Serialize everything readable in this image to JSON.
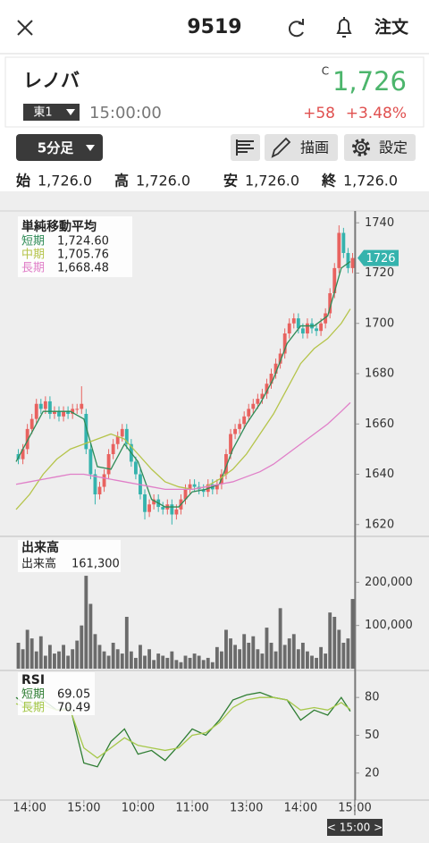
{
  "header": {
    "code": "9519",
    "order": "注文"
  },
  "stock": {
    "name": "レノバ",
    "price_flag": "C",
    "price": "1,726",
    "market": "東1",
    "time": "15:00:00",
    "change": "+58",
    "change_pct": "+3.48%"
  },
  "toolbar": {
    "interval": "5分足",
    "draw": "描画",
    "settings": "設定"
  },
  "ohlc": [
    {
      "label": "始",
      "value": "1,726.0"
    },
    {
      "label": "高",
      "value": "1,726.0"
    },
    {
      "label": "安",
      "value": "1,726.0"
    },
    {
      "label": "終",
      "value": "1,726.0"
    }
  ],
  "chart_data": [
    {
      "type": "candlestick",
      "title": "単純移動平均",
      "up_color": "#e8625f",
      "down_color": "#35b3ad",
      "xlim": [
        0,
        75
      ],
      "ylim": [
        1616,
        1744
      ],
      "yticks": [
        1620,
        1640,
        1660,
        1680,
        1700,
        1720,
        1740
      ],
      "current_price": 1726,
      "open": [
        1648,
        1646,
        1650,
        1658,
        1662,
        1668,
        1666,
        1669,
        1664,
        1665,
        1663,
        1665,
        1664,
        1666,
        1666,
        1664,
        1650,
        1640,
        1632,
        1635,
        1640,
        1648,
        1652,
        1655,
        1658,
        1652,
        1645,
        1640,
        1632,
        1625,
        1628,
        1630,
        1627,
        1626,
        1628,
        1624,
        1626,
        1630,
        1634,
        1636,
        1635,
        1634,
        1633,
        1636,
        1634,
        1636,
        1640,
        1648,
        1656,
        1658,
        1660,
        1663,
        1666,
        1668,
        1670,
        1672,
        1676,
        1680,
        1684,
        1688,
        1696,
        1700,
        1702,
        1698,
        1696,
        1700,
        1698,
        1697,
        1700,
        1704,
        1712,
        1722,
        1736,
        1728,
        1722
      ],
      "high": [
        1650,
        1652,
        1660,
        1664,
        1670,
        1670,
        1671,
        1671,
        1667,
        1667,
        1667,
        1667,
        1668,
        1668,
        1675,
        1666,
        1652,
        1642,
        1637,
        1642,
        1650,
        1654,
        1657,
        1660,
        1660,
        1654,
        1647,
        1642,
        1634,
        1630,
        1632,
        1632,
        1629,
        1630,
        1630,
        1628,
        1632,
        1636,
        1638,
        1638,
        1637,
        1636,
        1638,
        1638,
        1638,
        1642,
        1650,
        1658,
        1660,
        1662,
        1665,
        1668,
        1670,
        1672,
        1674,
        1678,
        1682,
        1686,
        1690,
        1698,
        1702,
        1704,
        1704,
        1700,
        1702,
        1702,
        1700,
        1702,
        1706,
        1714,
        1724,
        1739,
        1738,
        1730,
        1728
      ],
      "low": [
        1644,
        1644,
        1648,
        1656,
        1660,
        1664,
        1664,
        1662,
        1662,
        1661,
        1661,
        1662,
        1662,
        1664,
        1664,
        1648,
        1638,
        1628,
        1630,
        1633,
        1638,
        1646,
        1650,
        1653,
        1650,
        1643,
        1638,
        1630,
        1622,
        1623,
        1626,
        1625,
        1624,
        1624,
        1620,
        1622,
        1624,
        1628,
        1632,
        1633,
        1632,
        1631,
        1631,
        1632,
        1632,
        1634,
        1638,
        1646,
        1654,
        1656,
        1658,
        1661,
        1664,
        1666,
        1668,
        1670,
        1674,
        1678,
        1682,
        1686,
        1694,
        1698,
        1696,
        1694,
        1694,
        1696,
        1695,
        1695,
        1698,
        1702,
        1710,
        1720,
        1726,
        1720,
        1720
      ],
      "close": [
        1646,
        1650,
        1658,
        1662,
        1668,
        1666,
        1669,
        1664,
        1665,
        1663,
        1665,
        1664,
        1666,
        1666,
        1668,
        1650,
        1640,
        1632,
        1635,
        1640,
        1648,
        1652,
        1655,
        1658,
        1652,
        1645,
        1640,
        1632,
        1625,
        1628,
        1630,
        1627,
        1626,
        1628,
        1624,
        1626,
        1630,
        1634,
        1636,
        1635,
        1634,
        1633,
        1636,
        1634,
        1636,
        1640,
        1648,
        1656,
        1658,
        1660,
        1663,
        1666,
        1668,
        1670,
        1672,
        1676,
        1680,
        1684,
        1688,
        1696,
        1700,
        1702,
        1698,
        1696,
        1700,
        1698,
        1697,
        1700,
        1704,
        1712,
        1722,
        1736,
        1728,
        1722,
        1726
      ],
      "series": [
        {
          "name": "短期",
          "color": "#2e8b57",
          "last_label": "1,724.60",
          "x": [
            0,
            3,
            6,
            9,
            12,
            15,
            18,
            21,
            24,
            27,
            30,
            33,
            36,
            39,
            42,
            45,
            48,
            51,
            54,
            57,
            60,
            63,
            66,
            69,
            72,
            74
          ],
          "values": [
            1645,
            1655,
            1665,
            1665,
            1665,
            1662,
            1643,
            1642,
            1652,
            1645,
            1630,
            1627,
            1627,
            1633,
            1634,
            1636,
            1650,
            1660,
            1668,
            1678,
            1692,
            1699,
            1699,
            1703,
            1722,
            1724.6
          ]
        },
        {
          "name": "中期",
          "color": "#b5c44a",
          "last_label": "1,705.76",
          "x": [
            0,
            3,
            6,
            9,
            12,
            15,
            18,
            21,
            24,
            27,
            30,
            33,
            36,
            39,
            42,
            45,
            48,
            51,
            54,
            57,
            60,
            63,
            66,
            69,
            72,
            74
          ],
          "values": [
            1626,
            1632,
            1640,
            1646,
            1650,
            1652,
            1654,
            1656,
            1654,
            1648,
            1642,
            1637,
            1635,
            1634,
            1635,
            1638,
            1642,
            1648,
            1656,
            1664,
            1674,
            1684,
            1690,
            1694,
            1700,
            1705.76
          ]
        },
        {
          "name": "長期",
          "color": "#e07fc8",
          "last_label": "1,668.48",
          "x": [
            0,
            3,
            6,
            9,
            12,
            15,
            18,
            21,
            24,
            27,
            30,
            33,
            36,
            39,
            42,
            45,
            48,
            51,
            54,
            57,
            60,
            63,
            66,
            69,
            72,
            74
          ],
          "values": [
            1636,
            1637,
            1638,
            1639,
            1640,
            1640,
            1639,
            1638,
            1637,
            1636,
            1635,
            1634,
            1634,
            1634,
            1635,
            1636,
            1637,
            1639,
            1641,
            1644,
            1648,
            1652,
            1656,
            1660,
            1665,
            1668.48
          ]
        }
      ]
    },
    {
      "type": "bar",
      "title": "出来高",
      "name": "出来高",
      "last_label": "161,300",
      "color": "#6b6b6b",
      "xlim": [
        0,
        75
      ],
      "ylim": [
        0,
        300000
      ],
      "yticks": [
        {
          "value": 100000,
          "label": "100,000"
        },
        {
          "value": 200000,
          "label": "200,000"
        }
      ],
      "values": [
        60000,
        45000,
        90000,
        70000,
        40000,
        75000,
        30000,
        55000,
        35000,
        40000,
        55000,
        30000,
        45000,
        65000,
        100000,
        215000,
        150000,
        80000,
        55000,
        40000,
        30000,
        60000,
        45000,
        35000,
        120000,
        40000,
        25000,
        55000,
        30000,
        45000,
        20000,
        35000,
        30000,
        25000,
        40000,
        20000,
        15000,
        30000,
        25000,
        35000,
        30000,
        20000,
        25000,
        15000,
        50000,
        40000,
        90000,
        70000,
        55000,
        45000,
        80000,
        60000,
        75000,
        45000,
        35000,
        95000,
        60000,
        40000,
        140000,
        55000,
        70000,
        80000,
        45000,
        60000,
        40000,
        30000,
        25000,
        50000,
        35000,
        130000,
        120000,
        90000,
        60000,
        70000,
        161300
      ]
    },
    {
      "type": "line",
      "title": "RSI",
      "xlim": [
        0,
        75
      ],
      "ylim": [
        0,
        100
      ],
      "yticks": [
        20,
        50,
        80
      ],
      "xticks": [
        {
          "value": 3,
          "label": "14:00"
        },
        {
          "value": 15,
          "label": "15:00"
        },
        {
          "value": 27,
          "label": "10:00"
        },
        {
          "value": 39,
          "label": "11:00"
        },
        {
          "value": 51,
          "label": "13:00"
        },
        {
          "value": 63,
          "label": "14:00"
        },
        {
          "value": 75,
          "label": "15:00"
        }
      ],
      "crosshair_label": "< 15:00 >",
      "series": [
        {
          "name": "短期",
          "color": "#2e7d32",
          "last_label": "69.05",
          "x": [
            0,
            3,
            6,
            9,
            12,
            15,
            18,
            21,
            24,
            27,
            30,
            33,
            36,
            39,
            42,
            45,
            48,
            51,
            54,
            57,
            60,
            63,
            66,
            69,
            72,
            74
          ],
          "values": [
            80,
            72,
            78,
            70,
            72,
            28,
            25,
            45,
            55,
            35,
            38,
            30,
            42,
            55,
            50,
            62,
            78,
            82,
            84,
            80,
            78,
            62,
            70,
            66,
            80,
            69.05
          ]
        },
        {
          "name": "長期",
          "color": "#a6c84a",
          "last_label": "70.49",
          "x": [
            0,
            3,
            6,
            9,
            12,
            15,
            18,
            21,
            24,
            27,
            30,
            33,
            36,
            39,
            42,
            45,
            48,
            51,
            54,
            57,
            60,
            63,
            66,
            69,
            72,
            74
          ],
          "values": [
            75,
            72,
            74,
            70,
            70,
            40,
            32,
            40,
            48,
            42,
            40,
            38,
            40,
            50,
            52,
            60,
            72,
            78,
            80,
            80,
            78,
            70,
            72,
            70,
            76,
            70.49
          ]
        }
      ]
    }
  ]
}
